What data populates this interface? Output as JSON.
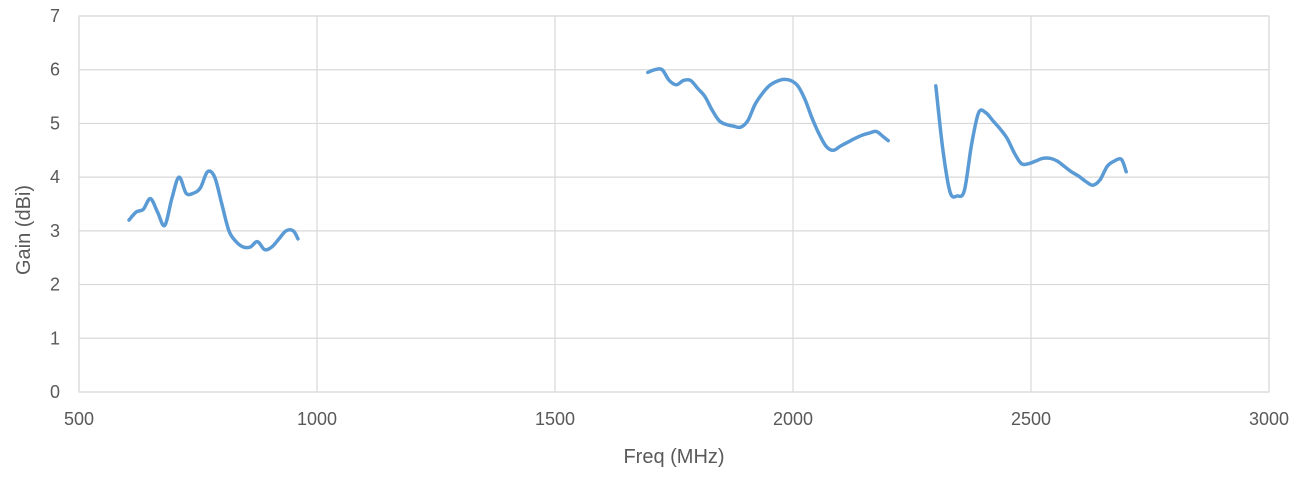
{
  "chart_data": {
    "type": "line",
    "title": "",
    "xlabel": "Freq (MHz)",
    "ylabel": "Gain (dBi)",
    "xlim": [
      500,
      3000
    ],
    "ylim": [
      0,
      7
    ],
    "x_ticks": [
      500,
      1000,
      1500,
      2000,
      2500,
      3000
    ],
    "y_ticks": [
      0,
      1,
      2,
      3,
      4,
      5,
      6,
      7
    ],
    "x_tick_labels": [
      "500",
      "1000",
      "1500",
      "2000",
      "2500",
      "3000"
    ],
    "y_tick_labels": [
      "0",
      "1",
      "2",
      "3",
      "4",
      "5",
      "6",
      "7"
    ],
    "grid": true,
    "legend": "none",
    "line_color": "#5b9bd5",
    "series": [
      {
        "points": [
          [
            605,
            3.2
          ],
          [
            620,
            3.35
          ],
          [
            635,
            3.4
          ],
          [
            650,
            3.6
          ],
          [
            665,
            3.35
          ],
          [
            680,
            3.1
          ],
          [
            695,
            3.6
          ],
          [
            710,
            4.0
          ],
          [
            725,
            3.7
          ],
          [
            740,
            3.7
          ],
          [
            755,
            3.8
          ],
          [
            770,
            4.1
          ],
          [
            785,
            4.0
          ],
          [
            800,
            3.5
          ],
          [
            815,
            3.0
          ],
          [
            830,
            2.8
          ],
          [
            845,
            2.7
          ],
          [
            860,
            2.7
          ],
          [
            875,
            2.8
          ],
          [
            890,
            2.65
          ],
          [
            905,
            2.7
          ],
          [
            920,
            2.85
          ],
          [
            935,
            3.0
          ],
          [
            950,
            3.0
          ],
          [
            960,
            2.85
          ]
        ]
      },
      {
        "points": [
          [
            1695,
            5.95
          ],
          [
            1710,
            6.0
          ],
          [
            1725,
            6.0
          ],
          [
            1740,
            5.8
          ],
          [
            1755,
            5.72
          ],
          [
            1770,
            5.8
          ],
          [
            1785,
            5.8
          ],
          [
            1800,
            5.65
          ],
          [
            1815,
            5.5
          ],
          [
            1830,
            5.25
          ],
          [
            1845,
            5.05
          ],
          [
            1860,
            4.98
          ],
          [
            1875,
            4.95
          ],
          [
            1890,
            4.93
          ],
          [
            1905,
            5.05
          ],
          [
            1920,
            5.35
          ],
          [
            1935,
            5.55
          ],
          [
            1950,
            5.7
          ],
          [
            1965,
            5.78
          ],
          [
            1980,
            5.82
          ],
          [
            1995,
            5.8
          ],
          [
            2010,
            5.7
          ],
          [
            2025,
            5.45
          ],
          [
            2040,
            5.1
          ],
          [
            2055,
            4.8
          ],
          [
            2070,
            4.57
          ],
          [
            2085,
            4.5
          ],
          [
            2100,
            4.58
          ],
          [
            2115,
            4.65
          ],
          [
            2130,
            4.72
          ],
          [
            2145,
            4.78
          ],
          [
            2160,
            4.82
          ],
          [
            2175,
            4.85
          ],
          [
            2190,
            4.75
          ],
          [
            2200,
            4.68
          ]
        ]
      },
      {
        "points": [
          [
            2300,
            5.7
          ],
          [
            2315,
            4.5
          ],
          [
            2330,
            3.72
          ],
          [
            2345,
            3.65
          ],
          [
            2360,
            3.75
          ],
          [
            2375,
            4.6
          ],
          [
            2390,
            5.2
          ],
          [
            2405,
            5.2
          ],
          [
            2420,
            5.05
          ],
          [
            2435,
            4.9
          ],
          [
            2450,
            4.72
          ],
          [
            2465,
            4.45
          ],
          [
            2480,
            4.25
          ],
          [
            2495,
            4.25
          ],
          [
            2510,
            4.3
          ],
          [
            2525,
            4.35
          ],
          [
            2540,
            4.35
          ],
          [
            2555,
            4.3
          ],
          [
            2570,
            4.2
          ],
          [
            2585,
            4.1
          ],
          [
            2600,
            4.02
          ],
          [
            2615,
            3.92
          ],
          [
            2630,
            3.85
          ],
          [
            2645,
            3.95
          ],
          [
            2660,
            4.2
          ],
          [
            2675,
            4.3
          ],
          [
            2690,
            4.33
          ],
          [
            2700,
            4.1
          ]
        ]
      }
    ]
  }
}
